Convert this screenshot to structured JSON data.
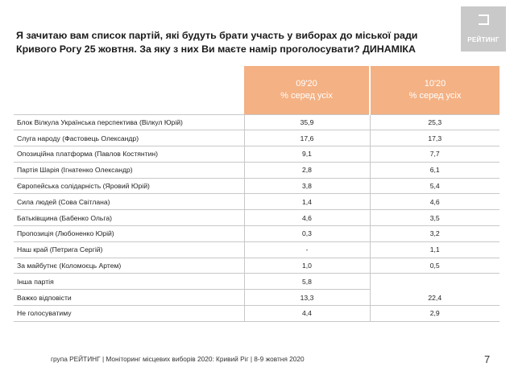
{
  "title": "Я зачитаю вам список партій, які будуть брати участь у виборах до міської ради Кривого Рогу 25 жовтня. За яку з них Ви маєте намір проголосувати? ДИНАМІКА",
  "logo_text": "РЕЙТИНГ",
  "table": {
    "columns": [
      {
        "period": "09'20",
        "sub": "% серед усіх"
      },
      {
        "period": "10'20",
        "sub": "% серед усіх"
      }
    ],
    "rows": [
      {
        "party": "Блок Вілкула Українська перспектива (Вілкул Юрій)",
        "v1": "35,9",
        "v2": "25,3"
      },
      {
        "party": "Слуга народу (Фастовець Олександр)",
        "v1": "17,6",
        "v2": "17,3"
      },
      {
        "party": "Опозиційна платформа (Павлов Костянтин)",
        "v1": "9,1",
        "v2": "7,7"
      },
      {
        "party": "Партія Шарія (Ігнатенко Олександр)",
        "v1": "2,8",
        "v2": "6,1"
      },
      {
        "party": "Європейська солідарність (Яровий Юрій)",
        "v1": "3,8",
        "v2": "5,4"
      },
      {
        "party": "Сила людей (Сова Світлана)",
        "v1": "1,4",
        "v2": "4,6"
      },
      {
        "party": "Батьківщина (Бабенко Ольга)",
        "v1": "4,6",
        "v2": "3,5"
      },
      {
        "party": "Пропозиція (Любоненко Юрій)",
        "v1": "0,3",
        "v2": "3,2"
      },
      {
        "party": "Наш край (Петрига Сергій)",
        "v1": "-",
        "v2": "1,1"
      },
      {
        "party": "За майбутнє (Коломоєць Артем)",
        "v1": "1,0",
        "v2": "0,5"
      },
      {
        "party": "Інша партія",
        "v1": "5,8",
        "v2": ""
      },
      {
        "party": "Важко відповісти",
        "v1": "13,3",
        "v2": "22,4"
      },
      {
        "party": "Не голосуватиму",
        "v1": "4,4",
        "v2": "2,9"
      }
    ]
  },
  "footer": "група РЕЙТИНГ  | Моніторинг місцевих виборів 2020: Кривий Ріг |  8-9 жовтня 2020",
  "page_number": "7",
  "colors": {
    "header_bg": "#f4b183",
    "logo_bg": "#c9c9c9"
  }
}
